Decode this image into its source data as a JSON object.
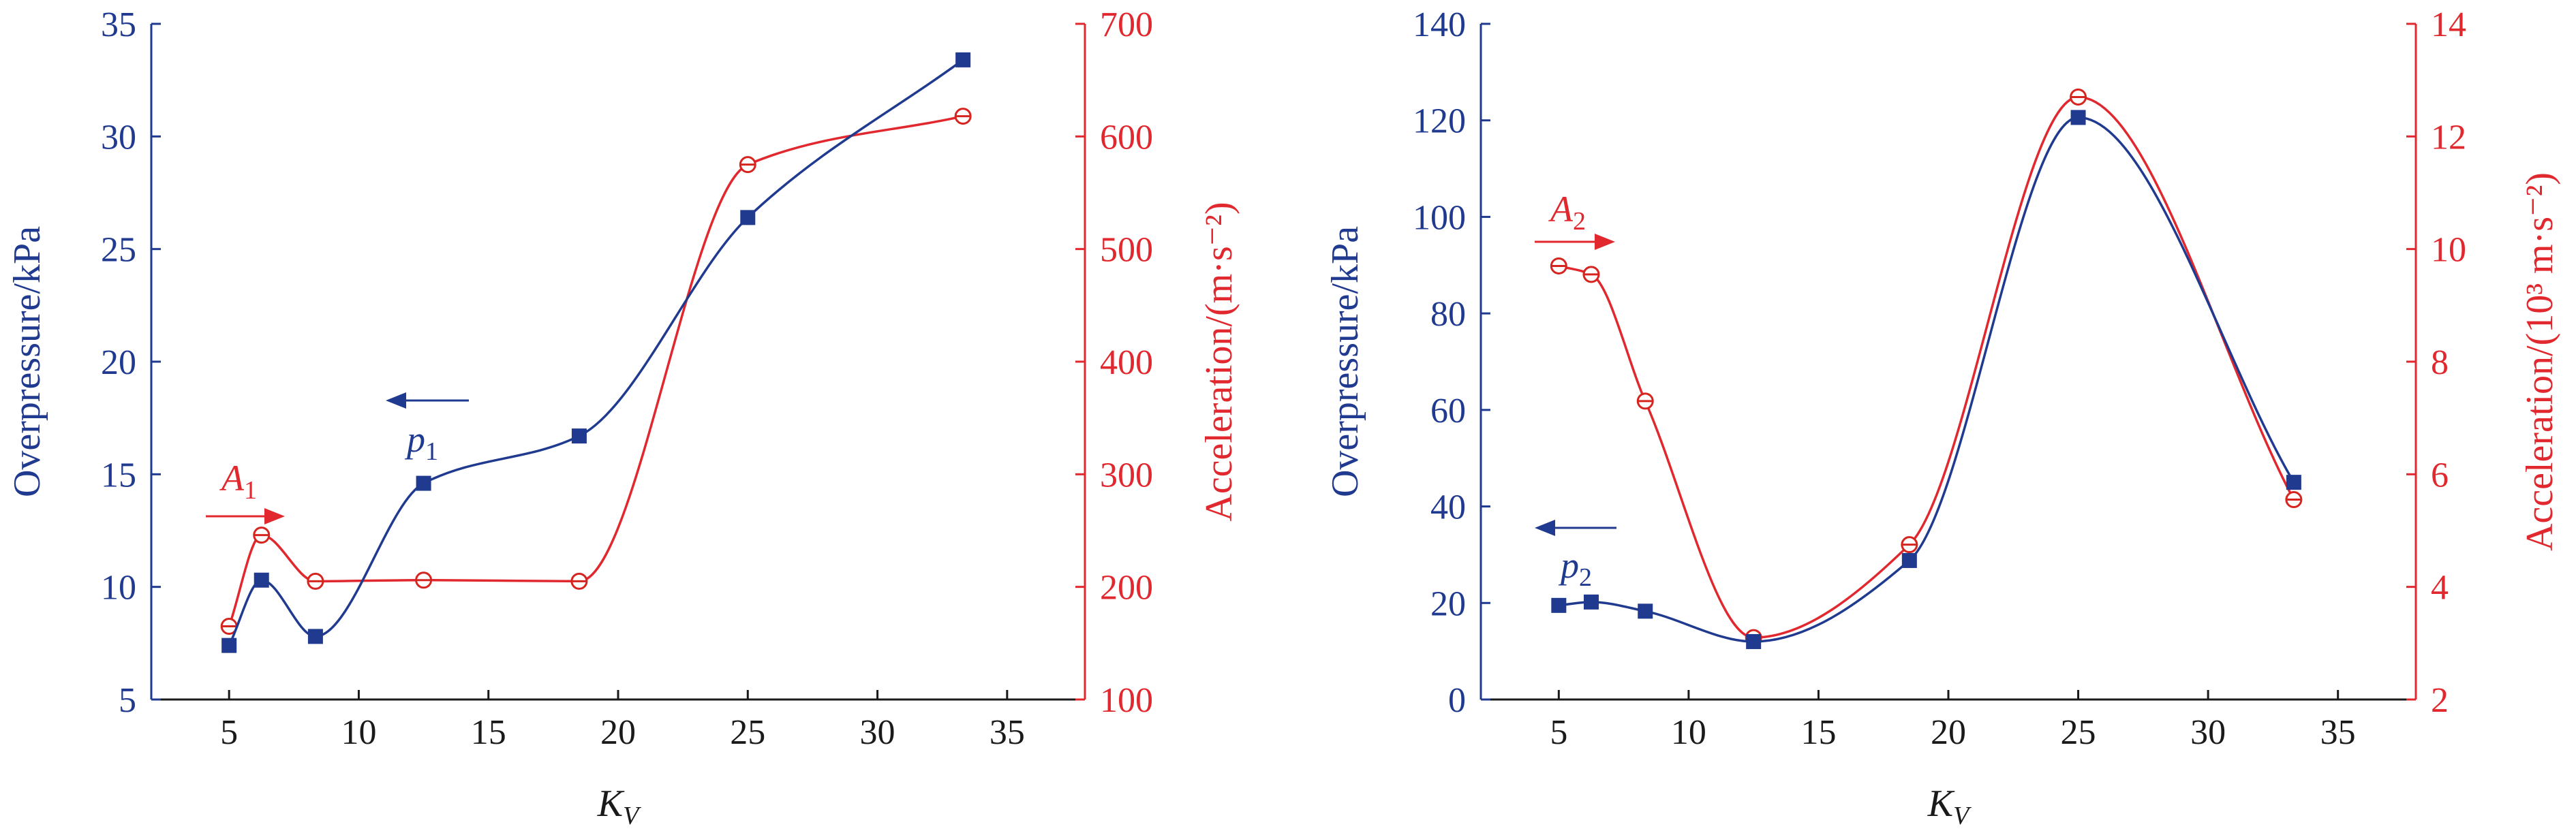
{
  "colors": {
    "blue": "#1F3A8F",
    "red": "#E0282E",
    "redMarker": "#D6251F",
    "axis": "#1a1a1a"
  },
  "chart_data": [
    {
      "type": "line",
      "title": "",
      "xlabel": "K",
      "xlabel_sub": "V",
      "ylabel": "Overpressure/kPa",
      "y2label": "Acceleration/(m·s⁻²)",
      "xlim": [
        2,
        38
      ],
      "ylim": [
        5,
        35
      ],
      "y2lim": [
        100,
        700
      ],
      "xticks": [
        5,
        10,
        15,
        20,
        25,
        30,
        35
      ],
      "yticks": [
        5,
        10,
        15,
        20,
        25,
        30,
        35
      ],
      "y2ticks": [
        100,
        200,
        300,
        400,
        500,
        600,
        700
      ],
      "grid": false,
      "series": [
        {
          "name": "p",
          "name_sub": "1",
          "axis": "left",
          "marker": "filled-square",
          "x": [
            5,
            6.25,
            8.33,
            12.5,
            18.5,
            25,
            33.3
          ],
          "y": [
            7.4,
            10.3,
            7.8,
            14.6,
            16.7,
            26.4,
            33.4
          ]
        },
        {
          "name": "A",
          "name_sub": "1",
          "axis": "right",
          "marker": "open-circle",
          "x": [
            5,
            6.25,
            8.33,
            12.5,
            18.5,
            25,
            33.3
          ],
          "y": [
            165,
            246,
            205,
            206,
            205,
            575,
            618
          ]
        }
      ]
    },
    {
      "type": "line",
      "title": "",
      "xlabel": "K",
      "xlabel_sub": "V",
      "ylabel": "Overpressure/kPa",
      "y2label": "Acceleration/(10³ m·s⁻²)",
      "xlim": [
        2,
        38
      ],
      "ylim": [
        0,
        140
      ],
      "y2lim": [
        2,
        14
      ],
      "xticks": [
        5,
        10,
        15,
        20,
        25,
        30,
        35
      ],
      "yticks": [
        0,
        20,
        40,
        60,
        80,
        100,
        120,
        140
      ],
      "y2ticks": [
        2,
        4,
        6,
        8,
        10,
        12,
        14
      ],
      "grid": false,
      "series": [
        {
          "name": "p",
          "name_sub": "2",
          "axis": "left",
          "marker": "filled-square",
          "x": [
            5,
            6.25,
            8.33,
            12.5,
            18.5,
            25,
            33.3
          ],
          "y": [
            19.5,
            20.2,
            18.3,
            12.0,
            28.8,
            120.6,
            45.0
          ]
        },
        {
          "name": "A",
          "name_sub": "2",
          "axis": "right",
          "marker": "open-circle",
          "x": [
            5,
            6.25,
            8.33,
            12.5,
            18.5,
            25,
            33.3
          ],
          "y": [
            9.7,
            9.55,
            7.3,
            3.1,
            4.75,
            12.7,
            5.55
          ]
        }
      ]
    }
  ]
}
